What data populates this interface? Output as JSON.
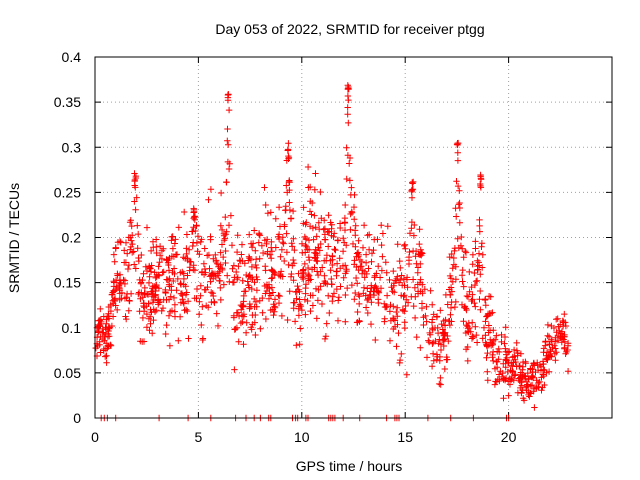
{
  "chart_data": {
    "type": "scatter",
    "title": "Day 053 of 2022, SRMTID for receiver ptgg",
    "xlabel": "GPS time / hours",
    "ylabel": "SRMTID / TECUs",
    "xlim": [
      0,
      25
    ],
    "ylim": [
      0,
      0.4
    ],
    "grid": true,
    "marker": "+",
    "color": "#ff0000",
    "x_ticks": [
      0,
      5,
      10,
      15,
      20
    ],
    "x_tick_labels": [
      "0",
      "5",
      "10",
      "15",
      "20"
    ],
    "y_ticks": [
      0,
      0.05,
      0.1,
      0.15,
      0.2,
      0.25,
      0.3,
      0.35,
      0.4
    ],
    "y_tick_labels": [
      "0",
      "0.05",
      "0.1",
      "0.15",
      "0.2",
      "0.25",
      "0.3",
      "0.35",
      "0.4"
    ],
    "series": [
      {
        "name": "SRMTID",
        "envelope": [
          [
            0.0,
            0.075,
            0.012
          ],
          [
            0.2,
            0.1,
            0.015
          ],
          [
            0.5,
            0.085,
            0.02
          ],
          [
            0.7,
            0.105,
            0.02
          ],
          [
            1.0,
            0.15,
            0.035
          ],
          [
            1.3,
            0.16,
            0.035
          ],
          [
            1.6,
            0.165,
            0.04
          ],
          [
            1.9,
            0.19,
            0.05
          ],
          [
            2.2,
            0.13,
            0.035
          ],
          [
            2.5,
            0.14,
            0.04
          ],
          [
            3.0,
            0.14,
            0.04
          ],
          [
            3.5,
            0.16,
            0.04
          ],
          [
            4.0,
            0.15,
            0.04
          ],
          [
            4.5,
            0.155,
            0.045
          ],
          [
            5.0,
            0.16,
            0.045
          ],
          [
            5.5,
            0.165,
            0.045
          ],
          [
            6.0,
            0.175,
            0.05
          ],
          [
            6.4,
            0.17,
            0.06
          ],
          [
            6.8,
            0.14,
            0.05
          ],
          [
            7.3,
            0.15,
            0.04
          ],
          [
            7.8,
            0.165,
            0.045
          ],
          [
            8.3,
            0.16,
            0.045
          ],
          [
            8.8,
            0.165,
            0.05
          ],
          [
            9.2,
            0.2,
            0.06
          ],
          [
            9.6,
            0.14,
            0.045
          ],
          [
            10.0,
            0.16,
            0.045
          ],
          [
            10.5,
            0.19,
            0.05
          ],
          [
            11.0,
            0.17,
            0.05
          ],
          [
            11.5,
            0.16,
            0.045
          ],
          [
            12.0,
            0.175,
            0.05
          ],
          [
            12.4,
            0.2,
            0.06
          ],
          [
            12.8,
            0.15,
            0.045
          ],
          [
            13.3,
            0.15,
            0.045
          ],
          [
            13.8,
            0.15,
            0.045
          ],
          [
            14.3,
            0.14,
            0.045
          ],
          [
            14.8,
            0.12,
            0.04
          ],
          [
            15.3,
            0.15,
            0.05
          ],
          [
            15.7,
            0.16,
            0.05
          ],
          [
            16.1,
            0.1,
            0.035
          ],
          [
            16.5,
            0.09,
            0.035
          ],
          [
            17.0,
            0.095,
            0.035
          ],
          [
            17.5,
            0.17,
            0.055
          ],
          [
            18.0,
            0.11,
            0.04
          ],
          [
            18.5,
            0.14,
            0.05
          ],
          [
            19.0,
            0.085,
            0.035
          ],
          [
            19.5,
            0.07,
            0.03
          ],
          [
            20.0,
            0.055,
            0.028
          ],
          [
            20.5,
            0.05,
            0.022
          ],
          [
            21.0,
            0.04,
            0.018
          ],
          [
            21.5,
            0.05,
            0.018
          ],
          [
            22.0,
            0.075,
            0.022
          ],
          [
            22.4,
            0.1,
            0.018
          ],
          [
            22.9,
            0.08,
            0.02
          ]
        ],
        "peaks": [
          {
            "x": 1.95,
            "y": 0.275,
            "spread": 0.25
          },
          {
            "x": 6.45,
            "y": 0.36,
            "spread": 0.22
          },
          {
            "x": 9.35,
            "y": 0.307,
            "spread": 0.25
          },
          {
            "x": 12.25,
            "y": 0.375,
            "spread": 0.22
          },
          {
            "x": 17.55,
            "y": 0.305,
            "spread": 0.25
          },
          {
            "x": 18.65,
            "y": 0.275,
            "spread": 0.2
          },
          {
            "x": 15.35,
            "y": 0.265,
            "spread": 0.25
          },
          {
            "x": 4.8,
            "y": 0.235,
            "spread": 0.25
          }
        ],
        "zero_values_x": [
          0.3,
          0.45,
          0.6,
          1.0,
          3.1,
          4.5,
          5.6,
          6.8,
          7.3,
          7.7,
          8.0,
          8.4,
          8.5,
          9.55,
          9.7,
          9.8,
          10.2,
          10.3,
          11.3,
          11.4,
          11.5,
          11.6,
          12.0,
          12.8,
          14.1,
          14.5,
          14.6,
          14.7,
          16.1,
          17.2,
          18.3,
          19.9,
          20.0
        ]
      }
    ]
  }
}
